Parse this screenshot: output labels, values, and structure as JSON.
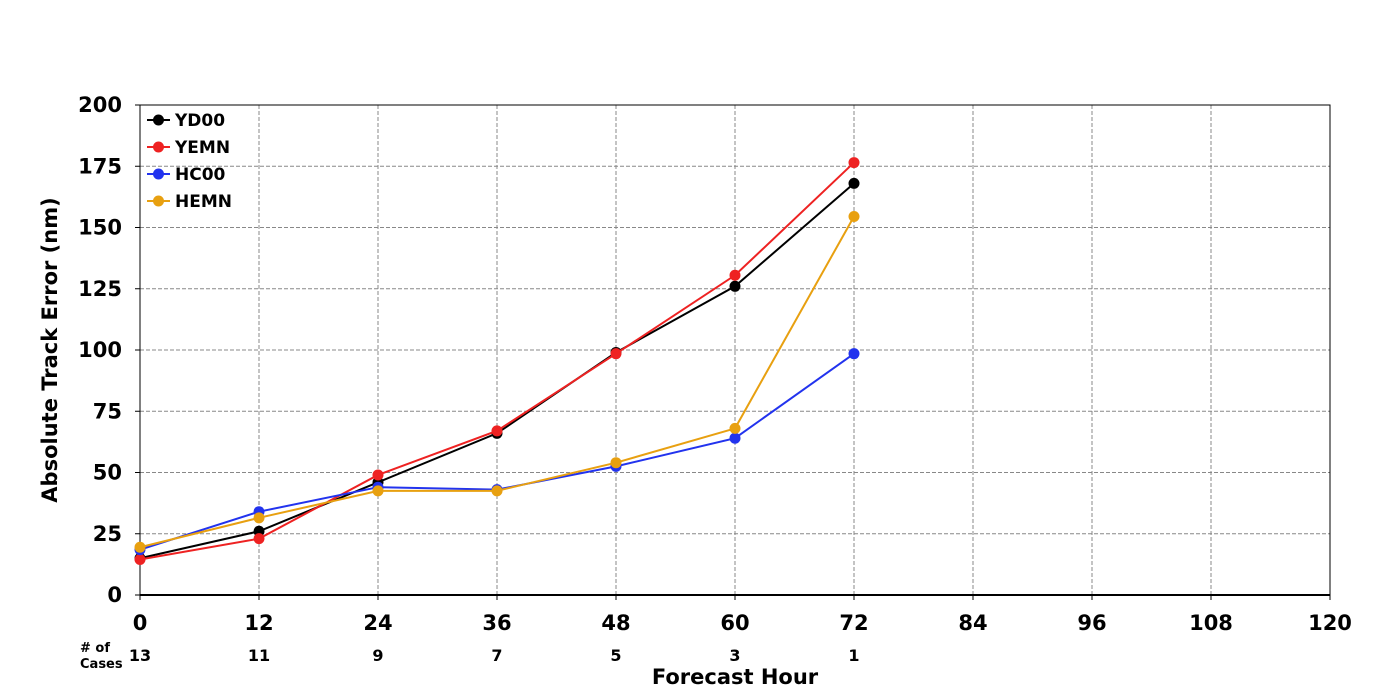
{
  "chart_data": {
    "type": "line",
    "xlabel": "Forecast Hour",
    "ylabel": "Absolute Track Error (nm)",
    "xlim": [
      0,
      120
    ],
    "ylim": [
      0,
      200
    ],
    "xticks": [
      "0",
      "12",
      "24",
      "36",
      "48",
      "60",
      "72",
      "84",
      "96",
      "108",
      "120"
    ],
    "yticks": [
      "0",
      "25",
      "50",
      "75",
      "100",
      "125",
      "150",
      "175",
      "200"
    ],
    "grid": true,
    "legend_position": "top-left",
    "cases_label": [
      "# of",
      "Cases"
    ],
    "cases": [
      {
        "x": 0,
        "n": "13"
      },
      {
        "x": 12,
        "n": "11"
      },
      {
        "x": 24,
        "n": "9"
      },
      {
        "x": 36,
        "n": "7"
      },
      {
        "x": 48,
        "n": "5"
      },
      {
        "x": 60,
        "n": "3"
      },
      {
        "x": 72,
        "n": "1"
      }
    ],
    "x": [
      0,
      12,
      24,
      36,
      48,
      60,
      72
    ],
    "series": [
      {
        "name": "YD00",
        "color": "#000000",
        "values": [
          15,
          26,
          46,
          66,
          99,
          126,
          168
        ]
      },
      {
        "name": "YEMN",
        "color": "#ee2222",
        "values": [
          14.5,
          23,
          49,
          67,
          98.5,
          130.5,
          176.5
        ]
      },
      {
        "name": "HC00",
        "color": "#2233ee",
        "values": [
          18.5,
          34,
          44,
          43,
          52.5,
          64,
          98.5
        ]
      },
      {
        "name": "HEMN",
        "color": "#e8a010",
        "values": [
          19.5,
          31.5,
          42.5,
          42.5,
          54,
          68,
          154.5
        ]
      }
    ]
  }
}
